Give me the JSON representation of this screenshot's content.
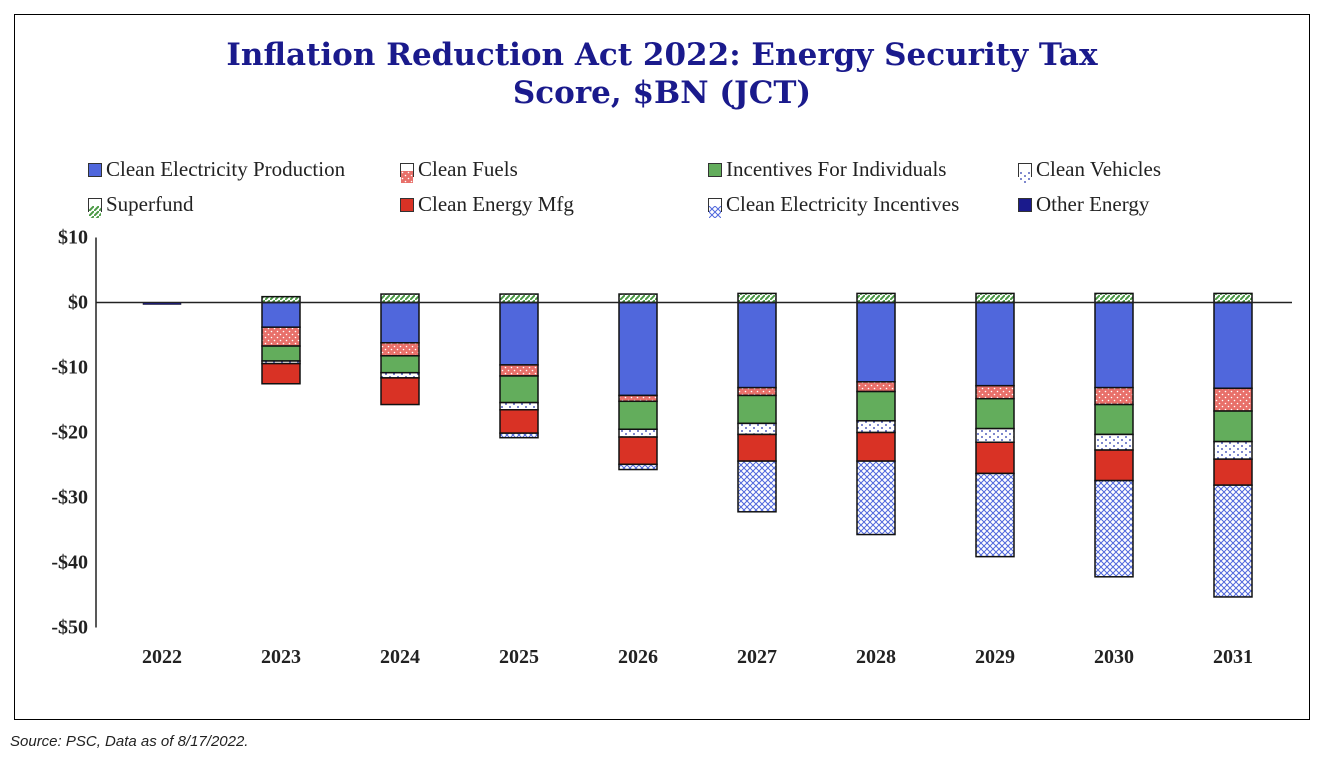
{
  "chart_data": {
    "type": "bar",
    "stacked": true,
    "title": [
      "Inflation Reduction Act 2022: Energy Security Tax",
      "Score, $BN (JCT)"
    ],
    "xlabel": "",
    "ylabel": "",
    "ylim": [
      -50,
      10
    ],
    "yticks": [
      10,
      0,
      -10,
      -20,
      -30,
      -40,
      -50
    ],
    "ytick_labels": [
      "$10",
      "$0",
      "-$10",
      "-$20",
      "-$30",
      "-$40",
      "-$50"
    ],
    "legend_position": "top",
    "categories": [
      "2022",
      "2023",
      "2024",
      "2025",
      "2026",
      "2027",
      "2028",
      "2029",
      "2030",
      "2031"
    ],
    "series": [
      {
        "name": "Clean Electricity Production",
        "color": "#5067dc",
        "pattern": "solid",
        "values": [
          0,
          -3.8,
          -6.2,
          -9.6,
          -14.3,
          -13.1,
          -12.2,
          -12.8,
          -13.1,
          -13.2
        ]
      },
      {
        "name": "Clean Fuels",
        "color": "#e8706a",
        "pattern": "dotted-red",
        "values": [
          0,
          -2.9,
          -2.0,
          -1.7,
          -0.9,
          -1.2,
          -1.5,
          -2.0,
          -2.6,
          -3.5
        ]
      },
      {
        "name": "Incentives For Individuals",
        "color": "#63ad5c",
        "pattern": "solid",
        "values": [
          0,
          -2.3,
          -2.6,
          -4.1,
          -4.3,
          -4.3,
          -4.5,
          -4.6,
          -4.6,
          -4.7
        ]
      },
      {
        "name": "Clean Vehicles",
        "color": "#ffffff",
        "pattern": "dots-blue",
        "values": [
          0,
          -0.4,
          -0.8,
          -1.1,
          -1.2,
          -1.7,
          -1.8,
          -2.1,
          -2.4,
          -2.7
        ]
      },
      {
        "name": "Clean Energy Mfg",
        "color": "#d93225",
        "pattern": "solid",
        "values": [
          0,
          -3.1,
          -4.1,
          -3.6,
          -4.2,
          -4.1,
          -4.4,
          -4.8,
          -4.7,
          -4.0
        ]
      },
      {
        "name": "Clean Electricity Incentives",
        "color": "#a9b6ef",
        "pattern": "crosshatch-blue",
        "values": [
          0,
          0,
          0,
          -0.7,
          -0.8,
          -7.8,
          -11.3,
          -12.8,
          -14.8,
          -17.2
        ]
      },
      {
        "name": "Superfund",
        "color": "#63ad5c",
        "pattern": "diagonal-green",
        "values": [
          0,
          0.9,
          1.3,
          1.3,
          1.3,
          1.4,
          1.4,
          1.4,
          1.4,
          1.4
        ]
      },
      {
        "name": "Other Energy",
        "color": "#1a1a8c",
        "pattern": "solid",
        "values": [
          -0.3,
          0,
          0,
          0,
          0,
          0,
          0,
          0,
          0,
          0
        ]
      }
    ]
  },
  "legend_order": [
    0,
    1,
    2,
    3,
    6,
    4,
    5,
    7
  ],
  "source": "Source: PSC, Data as of 8/17/2022."
}
